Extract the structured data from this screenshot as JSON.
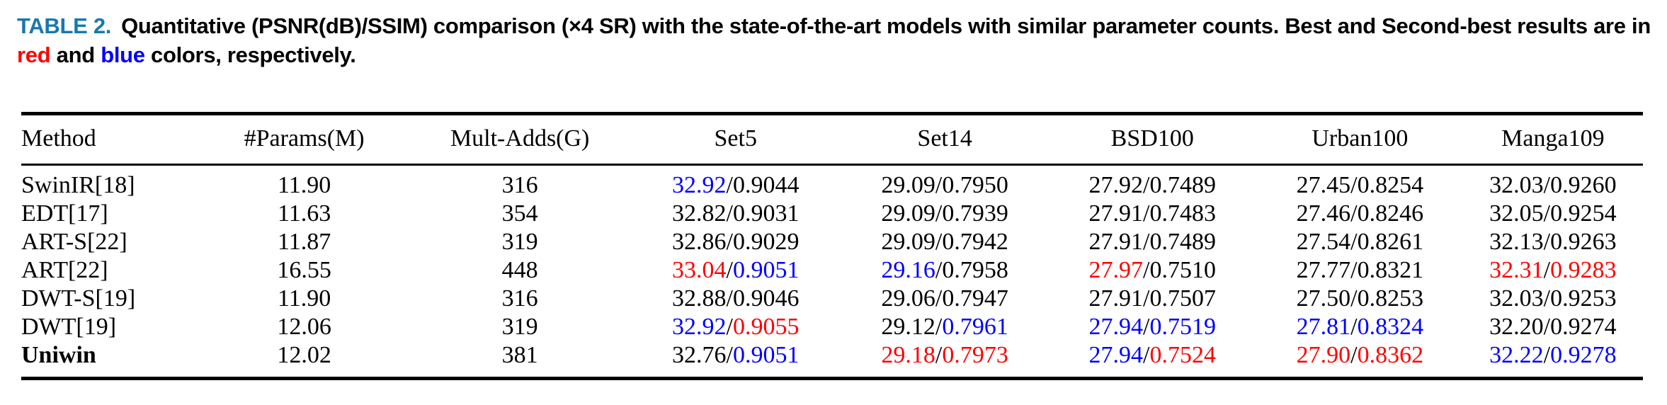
{
  "caption": {
    "label": "TABLE 2.",
    "text1": "Quantitative (PSNR(dB)/SSIM) comparison (×4 SR) with the state-of-the-art models with similar parameter counts. Best and Second-best results are in ",
    "red_word": "red",
    "text2": " and ",
    "blue_word": "blue",
    "text3": " colors, respectively."
  },
  "colors": {
    "caption_label": "#1878ae",
    "best": "#ff0000",
    "second_best": "#0000ff",
    "text": "#000000"
  },
  "table": {
    "slash": "/",
    "headers": [
      "Method",
      "#Params(M)",
      "Mult-Adds(G)",
      "Set5",
      "Set14",
      "BSD100",
      "Urban100",
      "Manga109"
    ],
    "rows": [
      {
        "method": "SwinIR[18]",
        "bold": false,
        "params": "11.90",
        "multadds": "316",
        "cells": [
          {
            "psnr": "32.92",
            "psnr_color": "blue",
            "ssim": "0.9044",
            "ssim_color": "black"
          },
          {
            "psnr": "29.09",
            "psnr_color": "black",
            "ssim": "0.7950",
            "ssim_color": "black"
          },
          {
            "psnr": "27.92",
            "psnr_color": "black",
            "ssim": "0.7489",
            "ssim_color": "black"
          },
          {
            "psnr": "27.45",
            "psnr_color": "black",
            "ssim": "0.8254",
            "ssim_color": "black"
          },
          {
            "psnr": "32.03",
            "psnr_color": "black",
            "ssim": "0.9260",
            "ssim_color": "black"
          }
        ]
      },
      {
        "method": "EDT[17]",
        "bold": false,
        "params": "11.63",
        "multadds": "354",
        "cells": [
          {
            "psnr": "32.82",
            "psnr_color": "black",
            "ssim": "0.9031",
            "ssim_color": "black"
          },
          {
            "psnr": "29.09",
            "psnr_color": "black",
            "ssim": "0.7939",
            "ssim_color": "black"
          },
          {
            "psnr": "27.91",
            "psnr_color": "black",
            "ssim": "0.7483",
            "ssim_color": "black"
          },
          {
            "psnr": "27.46",
            "psnr_color": "black",
            "ssim": "0.8246",
            "ssim_color": "black"
          },
          {
            "psnr": "32.05",
            "psnr_color": "black",
            "ssim": "0.9254",
            "ssim_color": "black"
          }
        ]
      },
      {
        "method": "ART-S[22]",
        "bold": false,
        "params": "11.87",
        "multadds": "319",
        "cells": [
          {
            "psnr": "32.86",
            "psnr_color": "black",
            "ssim": "0.9029",
            "ssim_color": "black"
          },
          {
            "psnr": "29.09",
            "psnr_color": "black",
            "ssim": "0.7942",
            "ssim_color": "black"
          },
          {
            "psnr": "27.91",
            "psnr_color": "black",
            "ssim": "0.7489",
            "ssim_color": "black"
          },
          {
            "psnr": "27.54",
            "psnr_color": "black",
            "ssim": "0.8261",
            "ssim_color": "black"
          },
          {
            "psnr": "32.13",
            "psnr_color": "black",
            "ssim": "0.9263",
            "ssim_color": "black"
          }
        ]
      },
      {
        "method": "ART[22]",
        "bold": false,
        "params": "16.55",
        "multadds": "448",
        "cells": [
          {
            "psnr": "33.04",
            "psnr_color": "red",
            "ssim": "0.9051",
            "ssim_color": "blue"
          },
          {
            "psnr": "29.16",
            "psnr_color": "blue",
            "ssim": "0.7958",
            "ssim_color": "black"
          },
          {
            "psnr": "27.97",
            "psnr_color": "red",
            "ssim": "0.7510",
            "ssim_color": "black"
          },
          {
            "psnr": "27.77",
            "psnr_color": "black",
            "ssim": "0.8321",
            "ssim_color": "black"
          },
          {
            "psnr": "32.31",
            "psnr_color": "red",
            "ssim": "0.9283",
            "ssim_color": "red"
          }
        ]
      },
      {
        "method": "DWT-S[19]",
        "bold": false,
        "params": "11.90",
        "multadds": "316",
        "cells": [
          {
            "psnr": "32.88",
            "psnr_color": "black",
            "ssim": "0.9046",
            "ssim_color": "black"
          },
          {
            "psnr": "29.06",
            "psnr_color": "black",
            "ssim": "0.7947",
            "ssim_color": "black"
          },
          {
            "psnr": "27.91",
            "psnr_color": "black",
            "ssim": "0.7507",
            "ssim_color": "black"
          },
          {
            "psnr": "27.50",
            "psnr_color": "black",
            "ssim": "0.8253",
            "ssim_color": "black"
          },
          {
            "psnr": "32.03",
            "psnr_color": "black",
            "ssim": "0.9253",
            "ssim_color": "black"
          }
        ]
      },
      {
        "method": "DWT[19]",
        "bold": false,
        "params": "12.06",
        "multadds": "319",
        "cells": [
          {
            "psnr": "32.92",
            "psnr_color": "blue",
            "ssim": "0.9055",
            "ssim_color": "red"
          },
          {
            "psnr": "29.12",
            "psnr_color": "black",
            "ssim": "0.7961",
            "ssim_color": "blue"
          },
          {
            "psnr": "27.94",
            "psnr_color": "blue",
            "ssim": "0.7519",
            "ssim_color": "blue"
          },
          {
            "psnr": "27.81",
            "psnr_color": "blue",
            "ssim": "0.8324",
            "ssim_color": "blue"
          },
          {
            "psnr": "32.20",
            "psnr_color": "black",
            "ssim": "0.9274",
            "ssim_color": "black"
          }
        ]
      },
      {
        "method": "Uniwin",
        "bold": true,
        "params": "12.02",
        "multadds": "381",
        "cells": [
          {
            "psnr": "32.76",
            "psnr_color": "black",
            "ssim": "0.9051",
            "ssim_color": "blue"
          },
          {
            "psnr": "29.18",
            "psnr_color": "red",
            "ssim": "0.7973",
            "ssim_color": "red"
          },
          {
            "psnr": "27.94",
            "psnr_color": "blue",
            "ssim": "0.7524",
            "ssim_color": "red"
          },
          {
            "psnr": "27.90",
            "psnr_color": "red",
            "ssim": "0.8362",
            "ssim_color": "red"
          },
          {
            "psnr": "32.22",
            "psnr_color": "blue",
            "ssim": "0.9278",
            "ssim_color": "blue"
          }
        ]
      }
    ]
  }
}
